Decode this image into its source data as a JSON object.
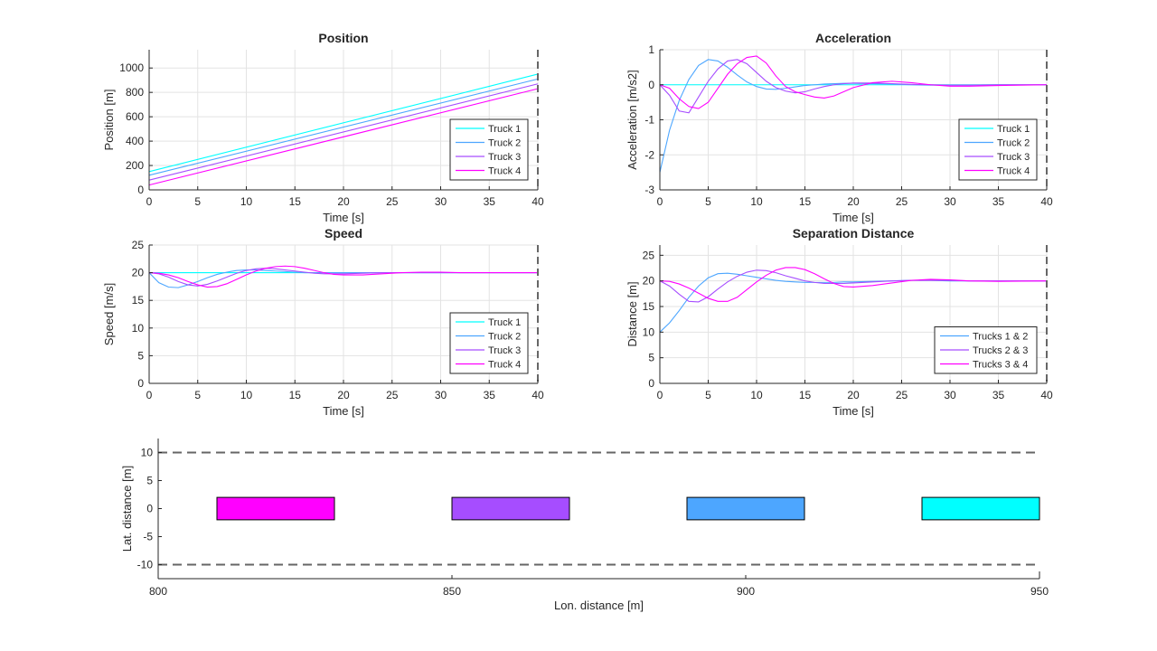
{
  "colors": {
    "truck1": "#00ffff",
    "truck2": "#4da6ff",
    "truck3": "#a64dff",
    "truck4": "#ff00ff",
    "grid": "#e3e3e3",
    "axis": "#262626",
    "dashed": "#666666"
  },
  "chart_data": [
    {
      "id": "position",
      "type": "line",
      "title": "Position",
      "xlabel": "Time [s]",
      "ylabel": "Position [m]",
      "xlim": [
        0,
        40
      ],
      "ylim": [
        0,
        1150
      ],
      "xticks": [
        0,
        5,
        10,
        15,
        20,
        25,
        30,
        35,
        40
      ],
      "yticks": [
        0,
        200,
        400,
        600,
        800,
        1000
      ],
      "grid": true,
      "legend_position": "bottom-right",
      "vline": 40,
      "x": [
        0,
        40
      ],
      "series": [
        {
          "name": "Truck 1",
          "color_key": "truck1",
          "values": [
            150,
            950
          ]
        },
        {
          "name": "Truck 2",
          "color_key": "truck2",
          "values": [
            120,
            910
          ]
        },
        {
          "name": "Truck 3",
          "color_key": "truck3",
          "values": [
            80,
            870
          ]
        },
        {
          "name": "Truck 4",
          "color_key": "truck4",
          "values": [
            40,
            830
          ]
        }
      ]
    },
    {
      "id": "acceleration",
      "type": "line",
      "title": "Acceleration",
      "xlabel": "Time [s]",
      "ylabel": "Acceleration [m/s2]",
      "xlim": [
        0,
        40
      ],
      "ylim": [
        -3,
        1
      ],
      "xticks": [
        0,
        5,
        10,
        15,
        20,
        25,
        30,
        35,
        40
      ],
      "yticks": [
        -3,
        -2,
        -1,
        0,
        1
      ],
      "grid": true,
      "legend_position": "bottom-right",
      "vline": 40,
      "x": [
        0,
        1,
        2,
        3,
        4,
        5,
        6,
        7,
        8,
        9,
        10,
        11,
        12,
        13,
        14,
        15,
        16,
        17,
        18,
        19,
        20,
        22,
        24,
        26,
        28,
        30,
        32,
        35,
        40
      ],
      "series": [
        {
          "name": "Truck 1",
          "color_key": "truck1",
          "values": [
            0,
            0,
            0,
            0,
            0,
            0,
            0,
            0,
            0,
            0,
            0,
            0,
            0,
            0,
            0,
            0,
            0,
            0,
            0,
            0,
            0,
            0,
            0,
            0,
            0,
            0,
            0,
            0,
            0
          ]
        },
        {
          "name": "Truck 2",
          "color_key": "truck2",
          "values": [
            -2.5,
            -1.3,
            -0.45,
            0.15,
            0.55,
            0.72,
            0.68,
            0.5,
            0.28,
            0.08,
            -0.05,
            -0.12,
            -0.13,
            -0.1,
            -0.06,
            -0.02,
            0.0,
            0.02,
            0.03,
            0.04,
            0.04,
            0.03,
            0.02,
            0.0,
            -0.01,
            -0.01,
            -0.01,
            0.0,
            0.0
          ]
        },
        {
          "name": "Truck 3",
          "color_key": "truck3",
          "values": [
            0,
            -0.3,
            -0.75,
            -0.8,
            -0.35,
            0.1,
            0.45,
            0.68,
            0.72,
            0.6,
            0.35,
            0.1,
            -0.08,
            -0.18,
            -0.23,
            -0.2,
            -0.12,
            -0.05,
            0.0,
            0.03,
            0.05,
            0.05,
            0.03,
            0.01,
            0.0,
            -0.01,
            -0.01,
            0.0,
            0.0
          ]
        },
        {
          "name": "Truck 4",
          "color_key": "truck4",
          "values": [
            0,
            -0.1,
            -0.4,
            -0.62,
            -0.68,
            -0.5,
            -0.1,
            0.3,
            0.6,
            0.78,
            0.82,
            0.62,
            0.25,
            -0.05,
            -0.2,
            -0.28,
            -0.35,
            -0.38,
            -0.32,
            -0.2,
            -0.08,
            0.06,
            0.1,
            0.06,
            0.0,
            -0.04,
            -0.04,
            -0.02,
            0.0
          ]
        }
      ]
    },
    {
      "id": "speed",
      "type": "line",
      "title": "Speed",
      "xlabel": "Time [s]",
      "ylabel": "Speed [m/s]",
      "xlim": [
        0,
        40
      ],
      "ylim": [
        0,
        25
      ],
      "xticks": [
        0,
        5,
        10,
        15,
        20,
        25,
        30,
        35,
        40
      ],
      "yticks": [
        0,
        5,
        10,
        15,
        20,
        25
      ],
      "grid": true,
      "legend_position": "bottom-right",
      "vline": 40,
      "x": [
        0,
        1,
        2,
        3,
        4,
        5,
        6,
        7,
        8,
        9,
        10,
        11,
        12,
        13,
        14,
        15,
        16,
        17,
        18,
        19,
        20,
        22,
        24,
        26,
        28,
        30,
        32,
        35,
        40
      ],
      "series": [
        {
          "name": "Truck 1",
          "color_key": "truck1",
          "values": [
            20,
            20,
            20,
            20,
            20,
            20,
            20,
            20,
            20,
            20,
            20,
            20,
            20,
            20,
            20,
            20,
            20,
            20,
            20,
            20,
            20,
            20,
            20,
            20,
            20,
            20,
            20,
            20,
            20
          ]
        },
        {
          "name": "Truck 2",
          "color_key": "truck2",
          "values": [
            20,
            18.2,
            17.4,
            17.3,
            17.8,
            18.4,
            19.1,
            19.7,
            20.1,
            20.4,
            20.5,
            20.5,
            20.4,
            20.3,
            20.2,
            20.1,
            20.0,
            20.0,
            20.0,
            20.0,
            20.0,
            20.0,
            20.0,
            20.0,
            20.0,
            20.0,
            20.0,
            20.0,
            20.0
          ]
        },
        {
          "name": "Truck 3",
          "color_key": "truck3",
          "values": [
            20,
            19.8,
            19.2,
            18.4,
            17.8,
            17.6,
            17.9,
            18.5,
            19.2,
            19.9,
            20.4,
            20.7,
            20.8,
            20.7,
            20.5,
            20.3,
            20.1,
            19.9,
            19.8,
            19.8,
            19.8,
            19.9,
            20.0,
            20.0,
            20.0,
            20.0,
            20.0,
            20.0,
            20.0
          ]
        },
        {
          "name": "Truck 4",
          "color_key": "truck4",
          "values": [
            20,
            19.9,
            19.6,
            19.1,
            18.4,
            17.8,
            17.4,
            17.5,
            18.0,
            18.8,
            19.6,
            20.3,
            20.8,
            21.1,
            21.2,
            21.1,
            20.8,
            20.4,
            20.0,
            19.7,
            19.6,
            19.6,
            19.8,
            20.0,
            20.1,
            20.1,
            20.0,
            20.0,
            20.0
          ]
        }
      ]
    },
    {
      "id": "separation",
      "type": "line",
      "title": "Separation Distance",
      "xlabel": "Time [s]",
      "ylabel": "Distance [m]",
      "xlim": [
        0,
        40
      ],
      "ylim": [
        0,
        27
      ],
      "xticks": [
        0,
        5,
        10,
        15,
        20,
        25,
        30,
        35,
        40
      ],
      "yticks": [
        0,
        5,
        10,
        15,
        20,
        25
      ],
      "grid": true,
      "legend_position": "bottom-right",
      "vline": 40,
      "x": [
        0,
        1,
        2,
        3,
        4,
        5,
        6,
        7,
        8,
        9,
        10,
        11,
        12,
        13,
        14,
        15,
        16,
        17,
        18,
        19,
        20,
        22,
        24,
        26,
        28,
        30,
        32,
        35,
        40
      ],
      "series": [
        {
          "name": "Trucks 1 & 2",
          "color_key": "truck2",
          "values": [
            10,
            11.8,
            14.2,
            16.8,
            19.0,
            20.6,
            21.4,
            21.5,
            21.3,
            21.0,
            20.7,
            20.4,
            20.1,
            19.9,
            19.8,
            19.7,
            19.7,
            19.7,
            19.7,
            19.8,
            19.8,
            19.9,
            20.0,
            20.1,
            20.1,
            20.0,
            20.0,
            20.0,
            20.0
          ]
        },
        {
          "name": "Trucks 2 & 3",
          "color_key": "truck3",
          "values": [
            20,
            19.0,
            17.4,
            16.0,
            15.9,
            16.9,
            18.4,
            19.8,
            20.9,
            21.7,
            22.1,
            22.0,
            21.6,
            21.0,
            20.5,
            20.0,
            19.7,
            19.5,
            19.5,
            19.5,
            19.6,
            19.8,
            20.0,
            20.1,
            20.1,
            20.1,
            20.0,
            20.0,
            20.0
          ]
        },
        {
          "name": "Trucks 3 & 4",
          "color_key": "truck4",
          "values": [
            20,
            19.9,
            19.4,
            18.6,
            17.6,
            16.6,
            16.0,
            16.0,
            16.8,
            18.3,
            19.8,
            21.1,
            22.1,
            22.6,
            22.6,
            22.2,
            21.4,
            20.4,
            19.5,
            18.9,
            18.8,
            19.1,
            19.6,
            20.1,
            20.3,
            20.2,
            20.0,
            19.9,
            20.0
          ]
        }
      ]
    },
    {
      "id": "scene",
      "type": "rectangles",
      "title": "",
      "xlabel": "Lon. distance [m]",
      "ylabel": "Lat. distance [m]",
      "xlim": [
        800,
        950
      ],
      "ylim": [
        -12.5,
        12.5
      ],
      "xticks": [
        800,
        850,
        900,
        950
      ],
      "yticks": [
        -10,
        -5,
        0,
        5,
        10
      ],
      "grid": false,
      "lane_lines": [
        10,
        -10
      ],
      "rects": [
        {
          "color_key": "truck4",
          "x0": 810,
          "x1": 830,
          "y0": -2,
          "y1": 2
        },
        {
          "color_key": "truck3",
          "x0": 850,
          "x1": 870,
          "y0": -2,
          "y1": 2
        },
        {
          "color_key": "truck2",
          "x0": 890,
          "x1": 910,
          "y0": -2,
          "y1": 2
        },
        {
          "color_key": "truck1",
          "x0": 930,
          "x1": 950,
          "y0": -2,
          "y1": 2
        }
      ]
    }
  ]
}
